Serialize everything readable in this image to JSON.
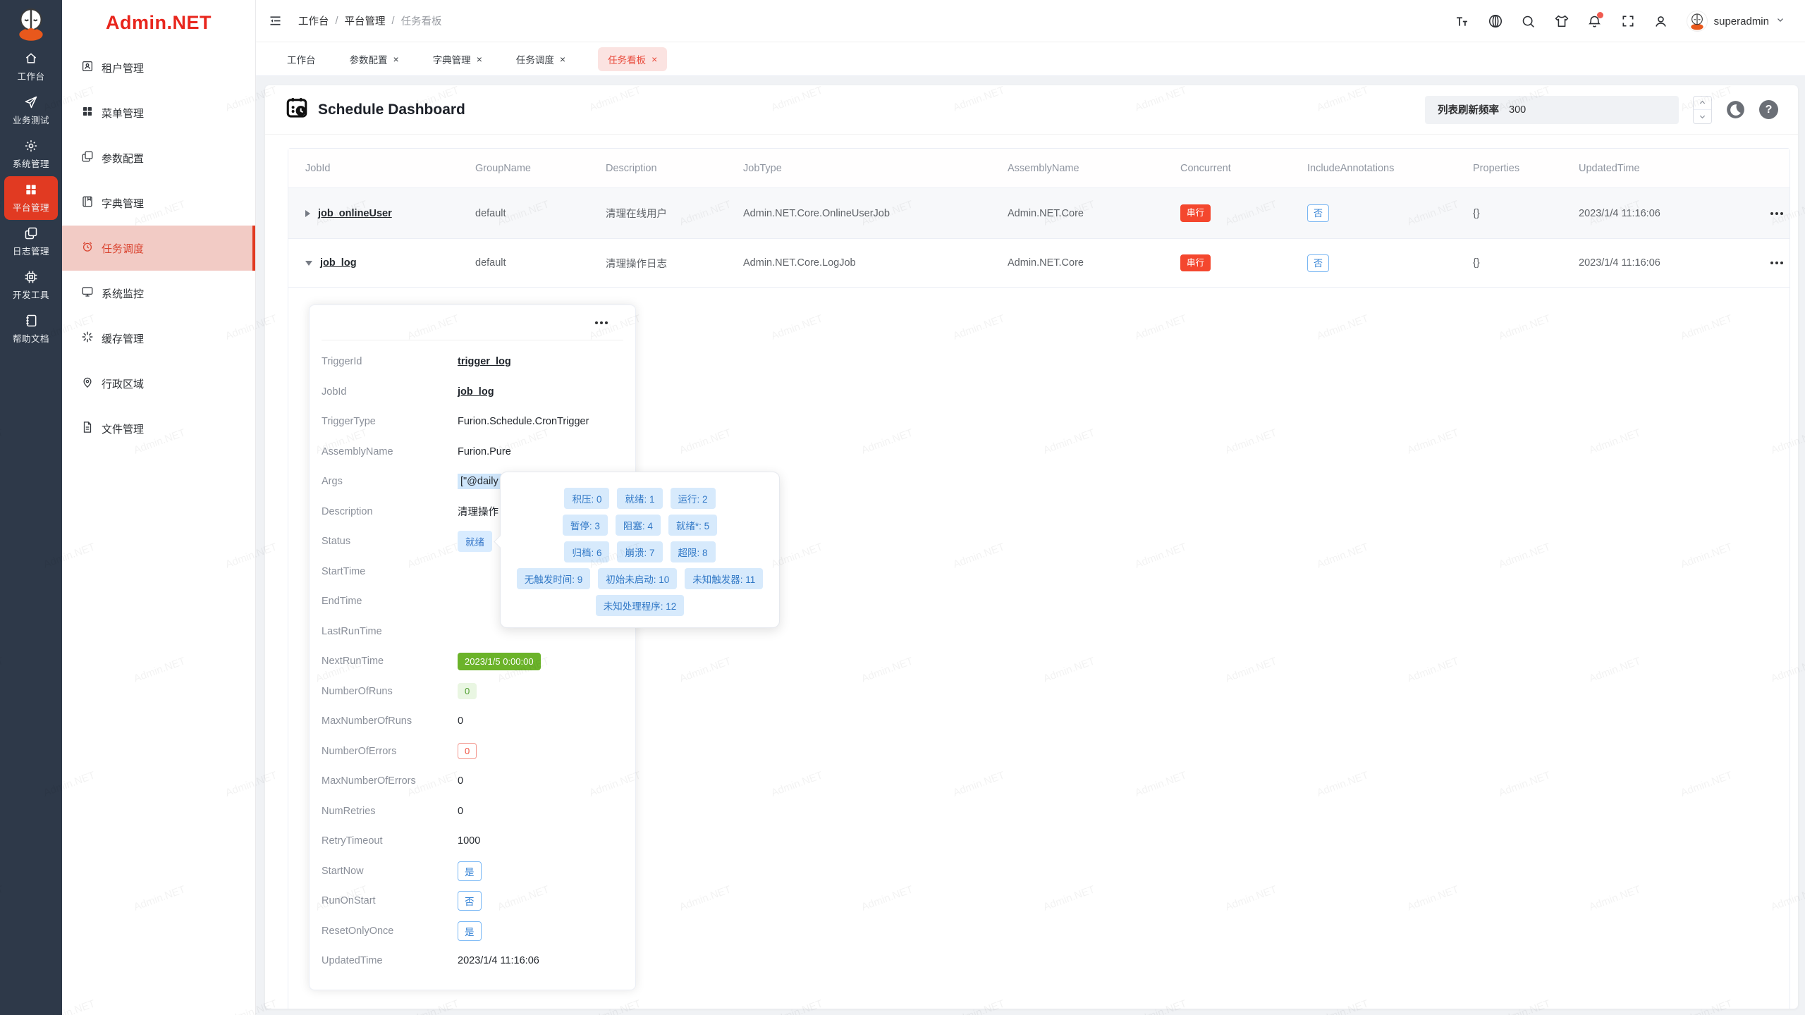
{
  "watermark": {
    "text": "Admin.NET"
  },
  "icons": {
    "close": "×",
    "breadcrumb_separator": "/",
    "help": "?"
  },
  "rail": {
    "items": [
      {
        "label": "工作台",
        "icon": "home-icon"
      },
      {
        "label": "业务测试",
        "icon": "send-icon"
      },
      {
        "label": "系统管理",
        "icon": "gear-icon"
      },
      {
        "label": "平台管理",
        "icon": "grid-icon"
      },
      {
        "label": "日志管理",
        "icon": "copy-icon"
      },
      {
        "label": "开发工具",
        "icon": "cpu-icon"
      },
      {
        "label": "帮助文档",
        "icon": "notebook-icon"
      }
    ]
  },
  "sidebar": {
    "logo": "Admin.NET",
    "items": [
      {
        "label": "租户管理",
        "icon": "tenant-icon"
      },
      {
        "label": "菜单管理",
        "icon": "menu-grid-icon"
      },
      {
        "label": "参数配置",
        "icon": "copy-icon"
      },
      {
        "label": "字典管理",
        "icon": "book-icon"
      },
      {
        "label": "任务调度",
        "icon": "alarm-icon"
      },
      {
        "label": "系统监控",
        "icon": "monitor-icon"
      },
      {
        "label": "缓存管理",
        "icon": "loading-icon"
      },
      {
        "label": "行政区域",
        "icon": "map-pin-icon"
      },
      {
        "label": "文件管理",
        "icon": "file-icon"
      }
    ]
  },
  "topbar": {
    "breadcrumb": [
      "工作台",
      "平台管理",
      "任务看板"
    ],
    "username": "superadmin"
  },
  "tabs": [
    {
      "label": "工作台"
    },
    {
      "label": "参数配置"
    },
    {
      "label": "字典管理"
    },
    {
      "label": "任务调度"
    },
    {
      "label": "任务看板"
    }
  ],
  "card": {
    "title": "Schedule Dashboard",
    "refresh_label": "列表刷新频率",
    "refresh_value": "300"
  },
  "table": {
    "columns": [
      "JobId",
      "GroupName",
      "Description",
      "JobType",
      "AssemblyName",
      "Concurrent",
      "IncludeAnnotations",
      "Properties",
      "UpdatedTime"
    ],
    "rows": [
      {
        "jobId": "job_onlineUser",
        "groupName": "default",
        "description": "清理在线用户",
        "jobType": "Admin.NET.Core.OnlineUserJob",
        "assemblyName": "Admin.NET.Core",
        "concurrent": "串行",
        "includeAnnotations": "否",
        "properties": "{}",
        "updatedTime": "2023/1/4 11:16:06"
      },
      {
        "jobId": "job_log",
        "groupName": "default",
        "description": "清理操作日志",
        "jobType": "Admin.NET.Core.LogJob",
        "assemblyName": "Admin.NET.Core",
        "concurrent": "串行",
        "includeAnnotations": "否",
        "properties": "{}",
        "updatedTime": "2023/1/4 11:16:06"
      }
    ]
  },
  "detail": {
    "rows": [
      {
        "label": "TriggerId",
        "value": "trigger_log"
      },
      {
        "label": "JobId",
        "value": "job_log"
      },
      {
        "label": "TriggerType",
        "value": "Furion.Schedule.CronTrigger"
      },
      {
        "label": "AssemblyName",
        "value": "Furion.Pure"
      },
      {
        "label": "Args",
        "value": "[\"@daily"
      },
      {
        "label": "Description",
        "value": "清理操作日志"
      },
      {
        "label": "Status",
        "value": "就绪"
      },
      {
        "label": "StartTime",
        "value": ""
      },
      {
        "label": "EndTime",
        "value": ""
      },
      {
        "label": "LastRunTime",
        "value": ""
      },
      {
        "label": "NextRunTime",
        "value": "2023/1/5 0:00:00"
      },
      {
        "label": "NumberOfRuns",
        "value": "0"
      },
      {
        "label": "MaxNumberOfRuns",
        "value": "0"
      },
      {
        "label": "NumberOfErrors",
        "value": "0"
      },
      {
        "label": "MaxNumberOfErrors",
        "value": "0"
      },
      {
        "label": "NumRetries",
        "value": "0"
      },
      {
        "label": "RetryTimeout",
        "value": "1000"
      },
      {
        "label": "StartNow",
        "value": "是"
      },
      {
        "label": "RunOnStart",
        "value": "否"
      },
      {
        "label": "ResetOnlyOnce",
        "value": "是"
      },
      {
        "label": "UpdatedTime",
        "value": "2023/1/4 11:16:06"
      }
    ]
  },
  "status_tooltip": {
    "badges": [
      "积压: 0",
      "就绪: 1",
      "运行: 2",
      "暂停: 3",
      "阻塞: 4",
      "就绪*: 5",
      "归档: 6",
      "崩溃: 7",
      "超限: 8",
      "无触发时间: 9",
      "初始未启动: 10",
      "未知触发器: 11",
      "未知处理程序: 12"
    ]
  }
}
